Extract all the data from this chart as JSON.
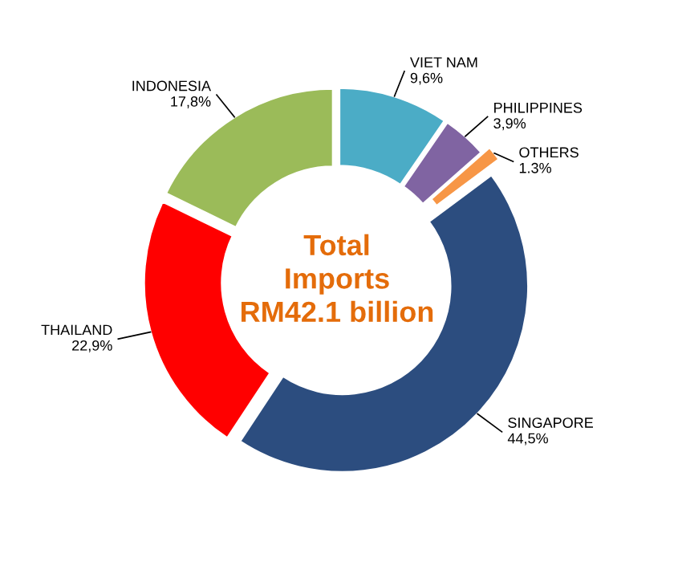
{
  "chart_data": {
    "type": "donut",
    "categories": [
      "VIET NAM",
      "PHILIPPINES",
      "OTHERS",
      "SINGAPORE",
      "THAILAND",
      "INDONESIA"
    ],
    "values": [
      9.6,
      3.9,
      1.3,
      44.5,
      22.9,
      17.8
    ],
    "value_labels": [
      "9,6%",
      "3,9%",
      "1.3%",
      "44,5%",
      "22,9%",
      "17,8%"
    ],
    "colors": [
      "#4bacc6",
      "#8064a2",
      "#f79646",
      "#2c4d7f",
      "#ff0000",
      "#9bbb59"
    ],
    "annotations": [
      "Total\nImports\nRM42.1 billion"
    ],
    "legend": false
  }
}
